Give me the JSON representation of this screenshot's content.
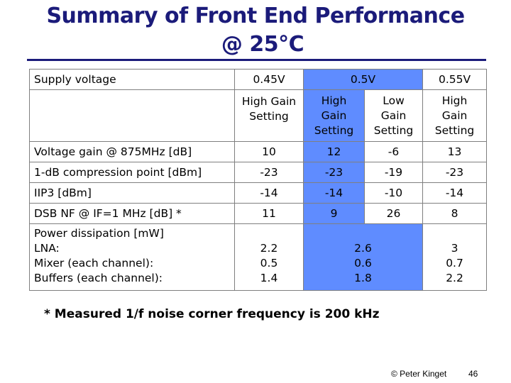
{
  "title": {
    "line1": "Summary of Front End Performance",
    "line2": "@ 25°C"
  },
  "table": {
    "supply_label": "Supply voltage",
    "voltages": [
      "0.45V",
      "0.5V",
      "0.55V"
    ],
    "settings": [
      [
        "High Gain",
        "Setting"
      ],
      [
        "High",
        "Gain",
        "Setting"
      ],
      [
        "Low",
        "Gain",
        "Setting"
      ],
      [
        "High",
        "Gain",
        "Setting"
      ]
    ],
    "rows": [
      {
        "label": "Voltage gain @ 875MHz [dB]",
        "values": [
          "10",
          "12",
          "-6",
          "13"
        ]
      },
      {
        "label": "1-dB compression point [dBm]",
        "values": [
          "-23",
          "-23",
          "-19",
          "-23"
        ]
      },
      {
        "label": "IIP3 [dBm]",
        "values": [
          "-14",
          "-14",
          "-10",
          "-14"
        ]
      },
      {
        "label": "DSB NF @ IF=1 MHz [dB] *",
        "values": [
          "11",
          "9",
          "26",
          "8"
        ]
      }
    ],
    "power": {
      "labels": [
        "Power dissipation [mW]",
        "LNA:",
        "Mixer (each channel):",
        "Buffers (each channel):"
      ],
      "col_045": [
        "2.2",
        "0.5",
        "1.4"
      ],
      "col_05": [
        "2.6",
        "0.6",
        "1.8"
      ],
      "col_055": [
        "3",
        "0.7",
        "2.2"
      ]
    }
  },
  "note": "* Measured 1/f noise corner frequency is 200 kHz",
  "footer": {
    "copyright": "© Peter Kinget",
    "page_number": "46"
  },
  "colors": {
    "title": "#1b1b7a",
    "highlight": "#5f8cff"
  }
}
